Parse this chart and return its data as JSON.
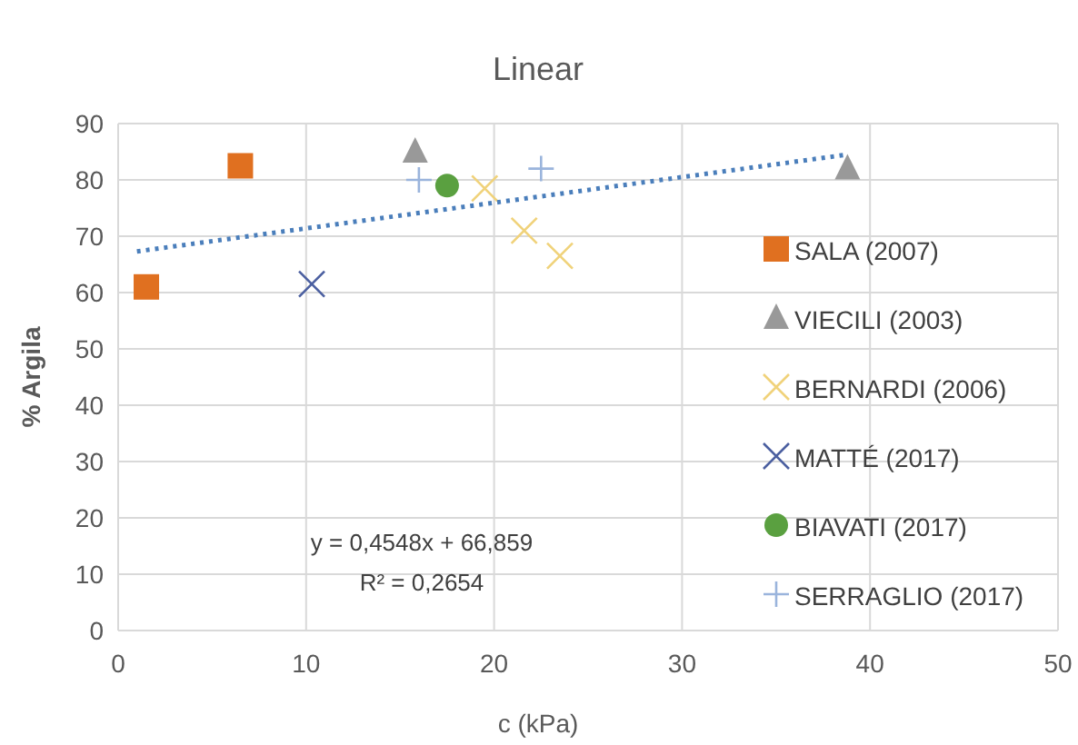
{
  "chart_data": {
    "type": "scatter",
    "title": "Linear",
    "xlabel": "c (kPa)",
    "ylabel": "% Argila",
    "xlim": [
      0,
      50
    ],
    "xticks": [
      0,
      10,
      20,
      30,
      40,
      50
    ],
    "ylim": [
      0,
      90
    ],
    "yticks": [
      0,
      10,
      20,
      30,
      40,
      50,
      60,
      70,
      80,
      90
    ],
    "grid": true,
    "legend": "right",
    "series": [
      {
        "name": "SALA (2007)",
        "color": "#e07020",
        "marker": "square",
        "x": [
          1.5,
          6.5
        ],
        "values": [
          61,
          82.5
        ]
      },
      {
        "name": "VIECILI (2003)",
        "color": "#999999",
        "marker": "triangle",
        "x": [
          15.8,
          38.8
        ],
        "values": [
          85,
          82
        ]
      },
      {
        "name": "BERNARDI (2006)",
        "color": "#f0d27a",
        "marker": "cross",
        "x": [
          19.5,
          21.6,
          23.5
        ],
        "values": [
          78.5,
          71,
          66.5
        ]
      },
      {
        "name": "MATTÉ (2017)",
        "color": "#4b5fa0",
        "marker": "cross",
        "x": [
          10.3
        ],
        "values": [
          61.5
        ]
      },
      {
        "name": "BIAVATI (2017)",
        "color": "#5aa040",
        "marker": "circle",
        "x": [
          17.5
        ],
        "values": [
          79
        ]
      },
      {
        "name": "SERRAGLIO (2017)",
        "color": "#9ab4dc",
        "marker": "plus",
        "x": [
          16,
          22.5
        ],
        "values": [
          80,
          82
        ]
      },
      {
        "type": "line",
        "color": "#4a7ebb",
        "line_style": "dotted",
        "marker": "none",
        "x": [
          1,
          38.8
        ],
        "values": [
          67.3,
          84.5
        ]
      }
    ],
    "annotations": [
      "y = 0,4548x + 66,859",
      "R² = 0,2654"
    ]
  }
}
